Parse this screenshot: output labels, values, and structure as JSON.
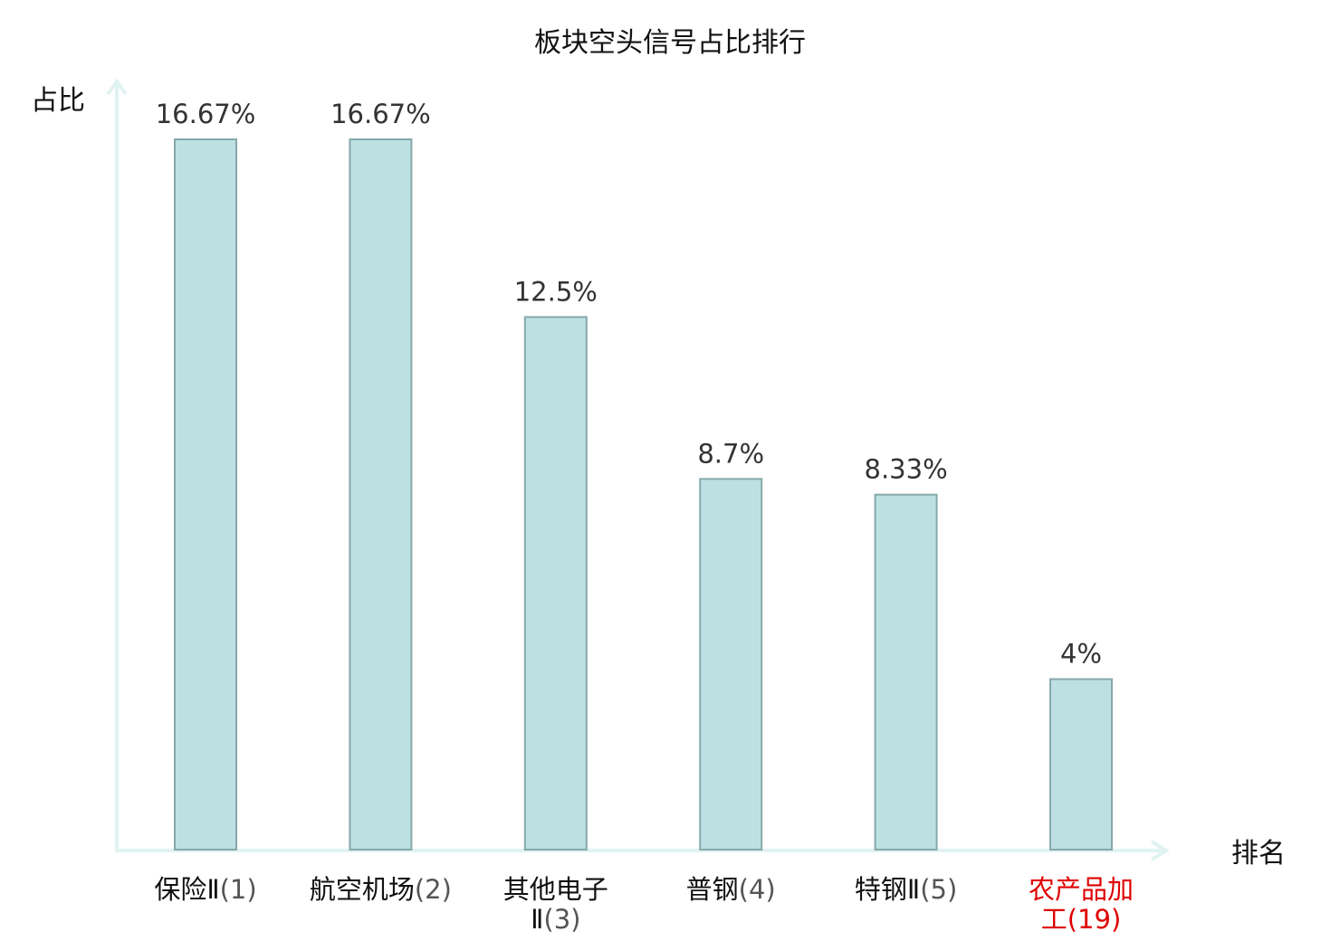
{
  "chart_data": {
    "type": "bar",
    "title": "板块空头信号占比排行",
    "ylabel": "占比",
    "xlabel": "排名",
    "categories": [
      {
        "lines": [
          {
            "name": "保险Ⅱ",
            "rank": "(1)"
          }
        ],
        "highlight": false
      },
      {
        "lines": [
          {
            "name": "航空机场",
            "rank": "(2)"
          }
        ],
        "highlight": false
      },
      {
        "lines": [
          {
            "name": "其他电子",
            "rank": ""
          },
          {
            "name": "Ⅱ",
            "rank": "(3)"
          }
        ],
        "highlight": false
      },
      {
        "lines": [
          {
            "name": "普钢",
            "rank": "(4)"
          }
        ],
        "highlight": false
      },
      {
        "lines": [
          {
            "name": "特钢Ⅱ",
            "rank": "(5)"
          }
        ],
        "highlight": false
      },
      {
        "lines": [
          {
            "name": "农产品加",
            "rank": ""
          },
          {
            "name": "工",
            "rank": "(19)"
          }
        ],
        "highlight": true
      }
    ],
    "values": [
      16.67,
      16.67,
      12.5,
      8.7,
      8.33,
      4
    ],
    "value_labels": [
      "16.67%",
      "16.67%",
      "12.5%",
      "8.7%",
      "8.33%",
      "4%"
    ],
    "ylim": [
      0,
      16.67
    ],
    "grid": false,
    "colors": {
      "bar_fill": "#bde0e3",
      "bar_stroke": "#86a9ab",
      "axis": "#e0f3f1",
      "highlight": "#e00000",
      "normal": "#111111"
    }
  }
}
